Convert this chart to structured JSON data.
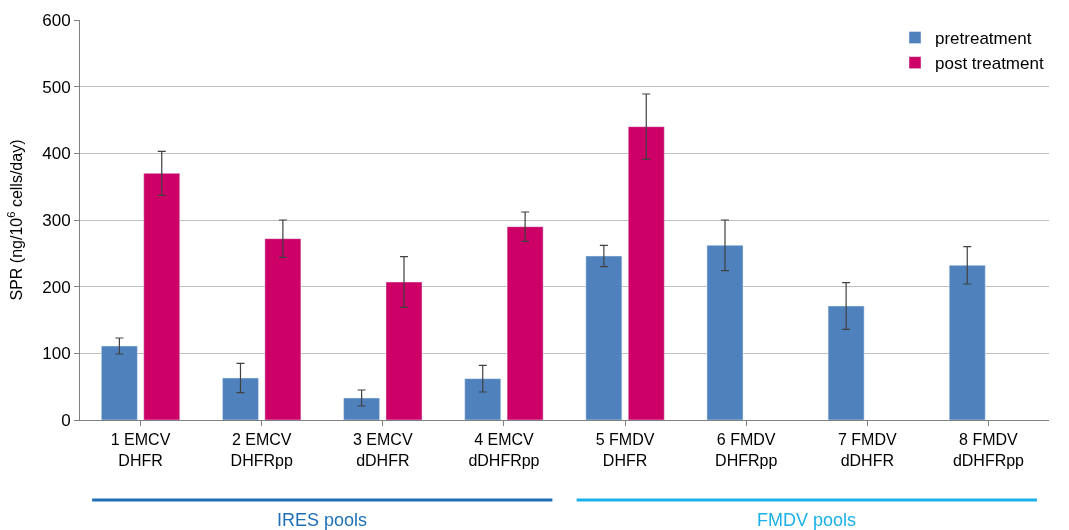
{
  "chart_data": {
    "type": "bar",
    "ylabel": "SPR (ng/10$^{6}$ cells/day)",
    "categories": [
      "1 EMCV\nDHFR",
      "2 EMCV\nDHFRpp",
      "3 EMCV\ndDHFR",
      "4 EMCV\ndDHFRpp",
      "5 FMDV\nDHFR",
      "6 FMDV\nDHFRpp",
      "7 FMDV\ndDHFR",
      "8 FMDV\ndDHFRpp"
    ],
    "series": [
      {
        "name": "pretreatment",
        "color": "#4f81bd",
        "values": [
          111,
          63,
          33,
          62,
          246,
          262,
          171,
          232
        ],
        "errors": [
          12,
          22,
          12,
          20,
          16,
          38,
          35,
          28
        ]
      },
      {
        "name": "post treatment",
        "color": "#cc0066",
        "values": [
          370,
          272,
          207,
          290,
          440,
          null,
          null,
          null
        ],
        "errors": [
          33,
          28,
          38,
          22,
          49,
          null,
          null,
          null
        ]
      }
    ],
    "ylim": [
      0,
      600
    ],
    "yticks": [
      0,
      100,
      200,
      300,
      400,
      500,
      600
    ],
    "grid": "y",
    "legend": "top right",
    "annotations": [
      "IRES pools",
      "FMDV pools"
    ]
  }
}
